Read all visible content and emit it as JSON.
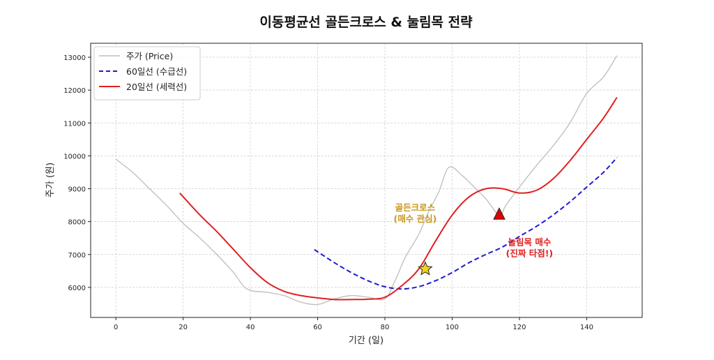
{
  "chart_data": {
    "type": "line",
    "title": "이동평균선 골든크로스 & 눌림목 전략",
    "xlabel": "기간 (일)",
    "ylabel": "주가 (원)",
    "xlim": [
      -7.5,
      156.5
    ],
    "ylim": [
      5085,
      13425
    ],
    "xticks": [
      0,
      20,
      40,
      60,
      80,
      100,
      120,
      140
    ],
    "yticks": [
      6000,
      7000,
      8000,
      9000,
      10000,
      11000,
      12000,
      13000
    ],
    "grid": true,
    "legend_position": "top-left",
    "series": [
      {
        "name": "주가 (Price)",
        "color": "#bdbdbd",
        "style": "solid",
        "x": [
          0,
          5,
          10,
          15,
          20,
          25,
          30,
          35,
          39,
          45,
          50,
          55,
          60,
          65,
          70,
          75,
          80,
          83,
          86,
          90,
          93,
          96,
          99,
          103,
          107,
          110,
          114,
          116,
          120,
          125,
          130,
          135,
          140,
          145,
          149
        ],
        "y": [
          9900,
          9500,
          9000,
          8500,
          7950,
          7500,
          7000,
          6450,
          5950,
          5850,
          5750,
          5550,
          5480,
          5650,
          5750,
          5700,
          5650,
          6200,
          6900,
          7600,
          8300,
          8900,
          9650,
          9400,
          9000,
          8700,
          8200,
          8500,
          9050,
          9700,
          10300,
          11000,
          11900,
          12400,
          13050
        ]
      },
      {
        "name": "60일선 (수급선)",
        "color": "#1c1cd0",
        "style": "dashed",
        "x": [
          59,
          65,
          70,
          75,
          80,
          85,
          90,
          95,
          100,
          105,
          110,
          115,
          120,
          125,
          130,
          135,
          140,
          145,
          149
        ],
        "y": [
          7150,
          6750,
          6450,
          6200,
          6020,
          5950,
          6020,
          6200,
          6450,
          6750,
          7000,
          7230,
          7550,
          7850,
          8200,
          8600,
          9050,
          9500,
          9950
        ]
      },
      {
        "name": "20일선 (세력선)",
        "color": "#e02020",
        "style": "solid",
        "x": [
          19,
          25,
          30,
          35,
          40,
          45,
          50,
          55,
          60,
          65,
          70,
          75,
          80,
          85,
          90,
          95,
          100,
          105,
          110,
          115,
          120,
          125,
          130,
          135,
          140,
          145,
          149
        ],
        "y": [
          8870,
          8200,
          7700,
          7150,
          6600,
          6150,
          5880,
          5750,
          5680,
          5630,
          5630,
          5640,
          5700,
          6050,
          6550,
          7400,
          8200,
          8750,
          9000,
          9000,
          8870,
          8950,
          9300,
          9850,
          10500,
          11150,
          11780
        ]
      }
    ],
    "markers": [
      {
        "type": "star",
        "x": 92,
        "y": 6560,
        "color": "#f5d21e"
      },
      {
        "type": "triangle",
        "x": 114,
        "y": 8220,
        "color": "#e00000"
      }
    ],
    "annotations": [
      {
        "lines": [
          "골든크로스",
          "(매수 관심)"
        ],
        "x": 89,
        "y": 8250,
        "color": "#c8961e"
      },
      {
        "lines": [
          "눌림목 매수",
          "(진짜 타점!)"
        ],
        "x": 123,
        "y": 7200,
        "color": "#e02020"
      }
    ]
  }
}
